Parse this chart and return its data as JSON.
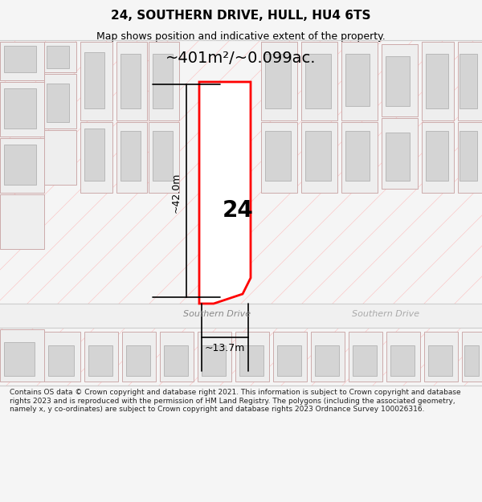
{
  "title_line1": "24, SOUTHERN DRIVE, HULL, HU4 6TS",
  "title_line2": "Map shows position and indicative extent of the property.",
  "area_text": "~401m²/~0.099ac.",
  "dim_height": "~42.0m",
  "dim_width": "~13.7m",
  "property_number": "24",
  "street_name": "Southern Drive",
  "street_name2": "Southern Drive",
  "footer_text": "Contains OS data © Crown copyright and database right 2021. This information is subject to Crown copyright and database rights 2023 and is reproduced with the permission of HM Land Registry. The polygons (including the associated geometry, namely x, y co-ordinates) are subject to Crown copyright and database rights 2023 Ordnance Survey 100026316.",
  "bg_color": "#f5f5f5",
  "map_bg": "#ffffff",
  "plot_color": "#ff0000",
  "plot_fill": "#ffffff",
  "building_color": "#d0d0d0",
  "building_edge": "#b0b0b0",
  "road_color": "#e8e8e8",
  "footer_bg": "#ffffff",
  "header_bg": "#ffffff"
}
